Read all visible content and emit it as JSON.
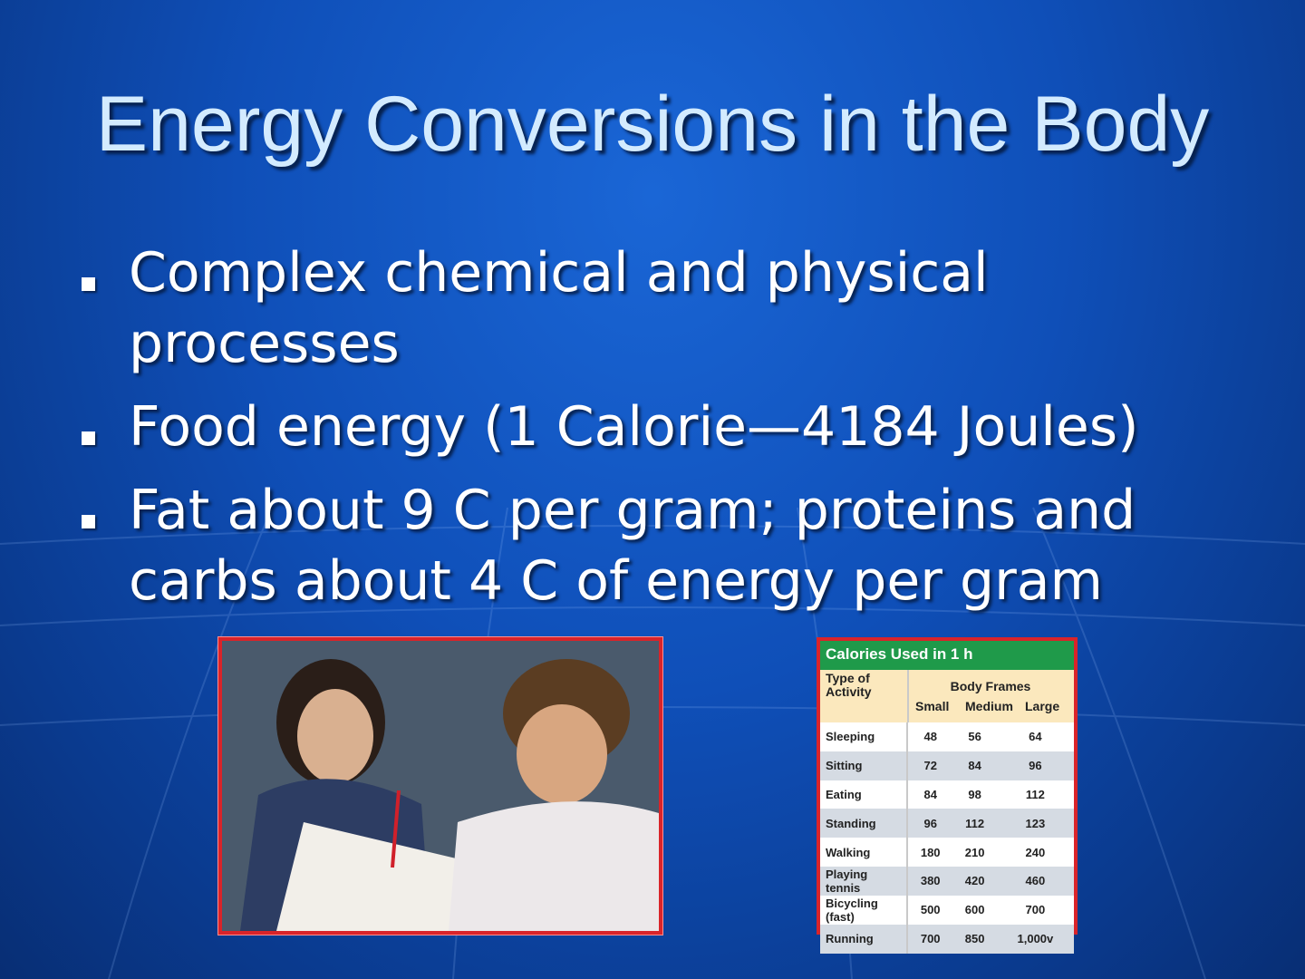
{
  "slide": {
    "title": "Energy Conversions in the Body",
    "bullets": [
      "Complex chemical and physical processes",
      "Food energy (1 Calorie—4184 Joules)",
      "Fat about 9 C per gram; proteins and carbs about 4 C of energy per gram"
    ],
    "photo": {
      "description_icon": "photo-students-writing"
    },
    "table": {
      "caption": "Calories Used in 1 h",
      "row_header": "Type of Activity",
      "group_header": "Body Frames",
      "columns": [
        "Small",
        "Medium",
        "Large"
      ],
      "rows": [
        {
          "activity": "Sleeping",
          "values": [
            "48",
            "56",
            "64"
          ]
        },
        {
          "activity": "Sitting",
          "values": [
            "72",
            "84",
            "96"
          ]
        },
        {
          "activity": "Eating",
          "values": [
            "84",
            "98",
            "112"
          ]
        },
        {
          "activity": "Standing",
          "values": [
            "96",
            "112",
            "123"
          ]
        },
        {
          "activity": "Walking",
          "values": [
            "180",
            "210",
            "240"
          ]
        },
        {
          "activity": "Playing tennis",
          "values": [
            "380",
            "420",
            "460"
          ]
        },
        {
          "activity": "Bicycling (fast)",
          "values": [
            "500",
            "600",
            "700"
          ]
        },
        {
          "activity": "Running",
          "values": [
            "700",
            "850",
            "1,000v"
          ]
        }
      ]
    },
    "colors": {
      "background": "#0f4fb8",
      "title": "#d3ebff",
      "table_caption": "#1f9a4a",
      "frame": "#d9242a"
    }
  }
}
